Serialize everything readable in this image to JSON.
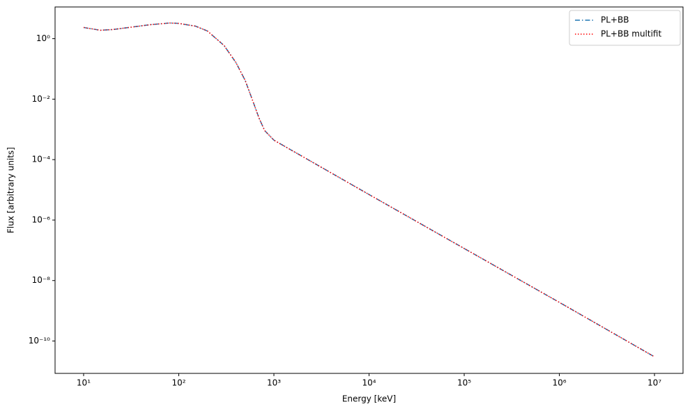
{
  "chart_data": {
    "type": "line",
    "x_label": "Energy [keV]",
    "y_label": "Flux [arbitrary units]",
    "xscale": "log",
    "yscale": "log",
    "xlim": [
      5.01,
      19950000
    ],
    "ylim": [
      8.5e-12,
      11.2
    ],
    "xticks": [
      {
        "value": 10,
        "label": "10¹"
      },
      {
        "value": 100,
        "label": "10²"
      },
      {
        "value": 1000,
        "label": "10³"
      },
      {
        "value": 10000,
        "label": "10⁴"
      },
      {
        "value": 100000,
        "label": "10⁵"
      },
      {
        "value": 1000000,
        "label": "10⁶"
      },
      {
        "value": 10000000,
        "label": "10⁷"
      }
    ],
    "yticks": [
      {
        "value": 1,
        "label": "10⁰"
      },
      {
        "value": 0.01,
        "label": "10⁻²"
      },
      {
        "value": 0.0001,
        "label": "10⁻⁴"
      },
      {
        "value": 1e-06,
        "label": "10⁻⁶"
      },
      {
        "value": 1e-08,
        "label": "10⁻⁸"
      },
      {
        "value": 1e-10,
        "label": "10⁻¹⁰"
      }
    ],
    "legend": "upper right",
    "x": [
      10,
      15,
      20,
      30,
      50,
      80,
      100,
      150,
      200,
      300,
      400,
      500,
      600,
      700,
      800,
      1000,
      10000,
      100000,
      1000000,
      10000000
    ],
    "series": [
      {
        "name": "PL+BB",
        "color": "#1f77b4",
        "linestyle": "dashdot",
        "values": [
          2.35,
          1.9,
          2.0,
          2.35,
          2.9,
          3.3,
          3.2,
          2.6,
          1.8,
          0.59,
          0.16,
          0.041,
          0.0087,
          0.0023,
          0.00091,
          0.00044,
          7e-06,
          1.15e-07,
          1.9e-09,
          3e-11
        ]
      },
      {
        "name": "PL+BB multifit",
        "color": "#ff0000",
        "linestyle": "dotted",
        "values": [
          2.35,
          1.9,
          2.0,
          2.35,
          2.9,
          3.3,
          3.2,
          2.6,
          1.8,
          0.59,
          0.16,
          0.041,
          0.0087,
          0.0023,
          0.00091,
          0.00044,
          7e-06,
          1.15e-07,
          1.9e-09,
          3e-11
        ]
      }
    ]
  }
}
